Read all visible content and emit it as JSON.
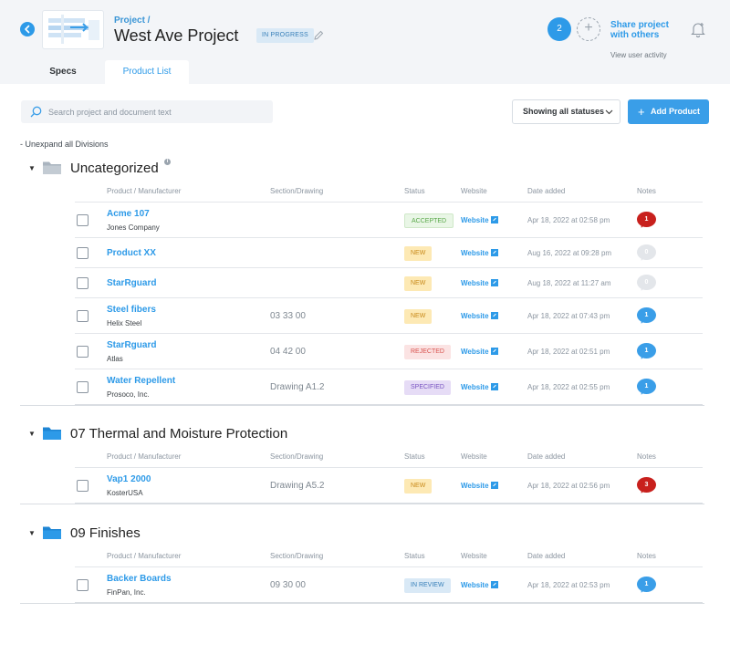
{
  "header": {
    "breadcrumb": "Project /",
    "title": "West Ave Project",
    "status": "IN PROGRESS",
    "collaborator_count": "2",
    "share_label_1": "Share project",
    "share_label_2": "with others",
    "activity_link": "View user activity",
    "icons": [
      "back-arrow-icon",
      "pencil-icon",
      "add-user-icon",
      "bell-plus-icon"
    ]
  },
  "tabs": [
    {
      "label": "Specs",
      "active": false
    },
    {
      "label": "Product List",
      "active": true
    }
  ],
  "toolbar": {
    "search_placeholder": "Search project and document text",
    "filter_label": "Showing all statuses",
    "add_label": "Add Product",
    "unexpand_label": "- Unexpand all Divisions"
  },
  "columns": {
    "product": "Product / Manufacturer",
    "section": "Section/Drawing",
    "status": "Status",
    "website": "Website",
    "date": "Date added",
    "notes": "Notes"
  },
  "divisions": [
    {
      "title": "Uncategorized",
      "folder_color": "#aab4bf",
      "rows": [
        {
          "name": "Acme 107",
          "mfr": "Jones Company",
          "section": "",
          "status": "ACCEPTED",
          "status_class": "st-accepted",
          "website": "Website",
          "date": "Apr 18, 2022 at 02:58 pm",
          "notes": "1",
          "note_color": "n-red"
        },
        {
          "name": "Product XX",
          "mfr": "",
          "section": "",
          "status": "NEW",
          "status_class": "st-new",
          "website": "Website",
          "date": "Aug 16, 2022 at 09:28 pm",
          "notes": "0",
          "note_color": "n-grey"
        },
        {
          "name": "StarRguard",
          "mfr": "",
          "section": "",
          "status": "NEW",
          "status_class": "st-new",
          "website": "Website",
          "date": "Aug 18, 2022 at 11:27 am",
          "notes": "0",
          "note_color": "n-grey"
        },
        {
          "name": "Steel fibers",
          "mfr": "Helix Steel",
          "section": "03 33 00",
          "status": "NEW",
          "status_class": "st-new",
          "website": "Website",
          "date": "Apr 18, 2022 at 07:43 pm",
          "notes": "1",
          "note_color": "n-blue"
        },
        {
          "name": "StarRguard",
          "mfr": "Atlas",
          "section": "04 42 00",
          "status": "REJECTED",
          "status_class": "st-rejected",
          "website": "Website",
          "date": "Apr 18, 2022 at 02:51 pm",
          "notes": "1",
          "note_color": "n-blue"
        },
        {
          "name": "Water Repellent",
          "mfr": "Prosoco, Inc.",
          "section": "Drawing A1.2",
          "status": "SPECIFIED",
          "status_class": "st-specified",
          "website": "Website",
          "date": "Apr 18, 2022 at 02:55 pm",
          "notes": "1",
          "note_color": "n-blue"
        }
      ]
    },
    {
      "title": "07 Thermal and Moisture Protection",
      "folder_color": "#2d9ae8",
      "rows": [
        {
          "name": "Vap1 2000",
          "mfr": "KosterUSA",
          "section": "Drawing A5.2",
          "status": "NEW",
          "status_class": "st-new",
          "website": "Website",
          "date": "Apr 18, 2022 at 02:56 pm",
          "notes": "3",
          "note_color": "n-red"
        }
      ]
    },
    {
      "title": "09 Finishes",
      "folder_color": "#2d9ae8",
      "rows": [
        {
          "name": "Backer Boards",
          "mfr": "FinPan, Inc.",
          "section": "09 30 00",
          "status": "IN REVIEW",
          "status_class": "st-review",
          "website": "Website",
          "date": "Apr 18, 2022 at 02:53 pm",
          "notes": "1",
          "note_color": "n-blue"
        }
      ]
    }
  ]
}
